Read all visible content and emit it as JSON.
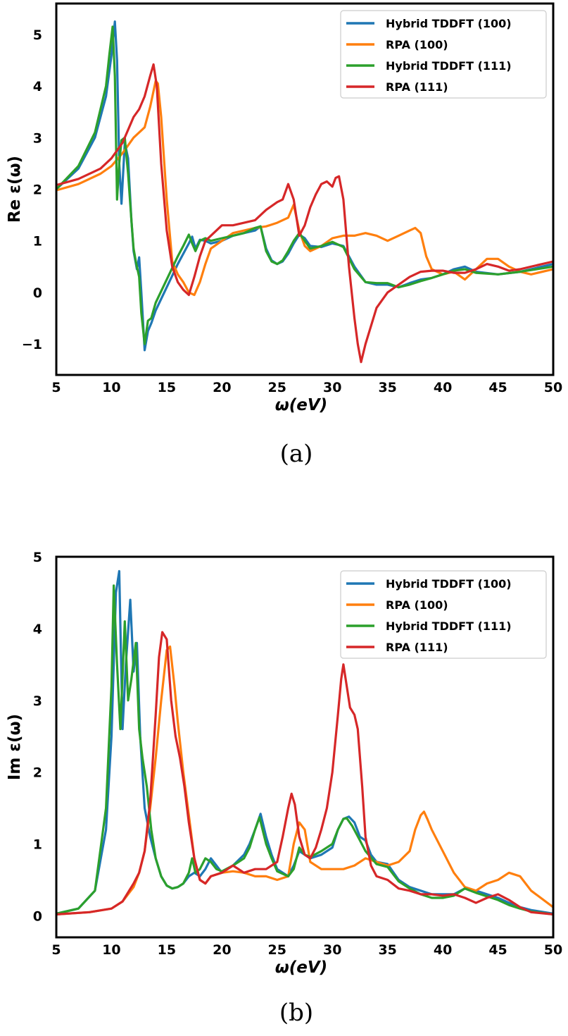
{
  "chart_data": [
    {
      "type": "line",
      "xlabel": "ω(eV)",
      "ylabel": "Re ε(ω)",
      "caption": "(a)",
      "xlim": [
        5,
        50
      ],
      "ylim": [
        -1.6,
        5.6
      ],
      "xticks": [
        5,
        10,
        15,
        20,
        25,
        30,
        35,
        40,
        45,
        50
      ],
      "yticks": [
        -1,
        0,
        1,
        2,
        3,
        4,
        5
      ],
      "legend_position": "top-right",
      "grid": false,
      "series": [
        {
          "name": "Hybrid TDDFT (100)",
          "color": "#1f77b4",
          "x": [
            5,
            7,
            8.5,
            9.5,
            10,
            10.3,
            10.5,
            10.7,
            10.9,
            11.2,
            11.5,
            11.8,
            12,
            12.3,
            12.5,
            12.7,
            13,
            13.3,
            13.6,
            14,
            15,
            16,
            17,
            17.3,
            17.6,
            18,
            18.5,
            19,
            20,
            21,
            22,
            23,
            23.5,
            24,
            24.5,
            25,
            25.5,
            26,
            26.5,
            27,
            27.5,
            28,
            29,
            30,
            31,
            32,
            33,
            34,
            35,
            36,
            37,
            38,
            39,
            40,
            41,
            42,
            43,
            45,
            47,
            50
          ],
          "y": [
            2.0,
            2.4,
            3.0,
            3.8,
            4.6,
            5.25,
            4.5,
            2.5,
            1.72,
            2.9,
            2.6,
            1.4,
            0.8,
            0.45,
            0.68,
            0.0,
            -1.12,
            -0.75,
            -0.6,
            -0.35,
            0.1,
            0.55,
            0.95,
            1.08,
            0.85,
            1.02,
            1.0,
            0.95,
            1.0,
            1.1,
            1.15,
            1.2,
            1.28,
            0.85,
            0.62,
            0.55,
            0.6,
            0.75,
            0.95,
            1.12,
            1.05,
            0.9,
            0.88,
            0.95,
            0.9,
            0.5,
            0.2,
            0.15,
            0.15,
            0.1,
            0.18,
            0.25,
            0.28,
            0.35,
            0.45,
            0.5,
            0.4,
            0.35,
            0.4,
            0.55
          ]
        },
        {
          "name": "RPA (100)",
          "color": "#ff7f0e",
          "x": [
            5,
            7,
            9,
            10,
            11,
            12,
            13,
            13.5,
            14,
            14.2,
            14.5,
            15,
            15.5,
            16,
            16.5,
            17,
            17.5,
            18,
            18.5,
            19,
            20,
            21,
            22,
            23,
            24,
            25,
            26,
            26.5,
            27,
            27.5,
            28,
            29,
            30,
            31,
            32,
            33,
            34,
            35,
            36,
            37,
            37.5,
            38,
            38.5,
            39,
            40,
            41,
            42,
            43,
            44,
            45,
            46,
            47,
            48,
            50
          ],
          "y": [
            1.98,
            2.1,
            2.3,
            2.45,
            2.7,
            3.0,
            3.2,
            3.6,
            4.1,
            4.05,
            3.4,
            1.8,
            0.6,
            0.35,
            0.2,
            0.0,
            -0.05,
            0.2,
            0.55,
            0.85,
            1.0,
            1.15,
            1.2,
            1.25,
            1.28,
            1.35,
            1.45,
            1.7,
            1.2,
            0.9,
            0.8,
            0.9,
            1.05,
            1.1,
            1.1,
            1.15,
            1.1,
            1.0,
            1.1,
            1.2,
            1.25,
            1.15,
            0.7,
            0.45,
            0.35,
            0.4,
            0.25,
            0.45,
            0.65,
            0.65,
            0.5,
            0.4,
            0.35,
            0.45
          ]
        },
        {
          "name": "Hybrid TDDFT (111)",
          "color": "#2ca02c",
          "x": [
            5,
            7,
            8.5,
            9.5,
            9.8,
            10.1,
            10.3,
            10.5,
            10.7,
            10.9,
            11.2,
            11.5,
            11.8,
            12,
            12.2,
            12.5,
            12.7,
            13,
            13.3,
            13.6,
            14,
            15,
            16,
            16.5,
            17,
            17.3,
            17.6,
            18,
            18.5,
            19,
            20,
            21,
            22,
            23,
            23.5,
            24,
            24.5,
            25,
            25.5,
            26,
            26.5,
            27,
            27.5,
            28,
            29,
            30,
            31,
            32,
            33,
            34,
            35,
            36,
            37,
            38,
            39,
            40,
            41,
            42,
            43,
            45,
            47,
            50
          ],
          "y": [
            2.0,
            2.45,
            3.1,
            4.0,
            4.6,
            5.15,
            4.2,
            1.8,
            2.5,
            2.95,
            3.0,
            2.3,
            1.4,
            0.85,
            0.6,
            0.3,
            -0.4,
            -1.0,
            -0.55,
            -0.5,
            -0.2,
            0.25,
            0.7,
            0.9,
            1.12,
            0.95,
            0.8,
            1.0,
            1.05,
            1.0,
            1.05,
            1.1,
            1.15,
            1.25,
            1.28,
            0.8,
            0.6,
            0.55,
            0.62,
            0.8,
            1.0,
            1.15,
            1.0,
            0.85,
            0.9,
            0.98,
            0.88,
            0.45,
            0.2,
            0.18,
            0.18,
            0.1,
            0.15,
            0.22,
            0.28,
            0.35,
            0.42,
            0.45,
            0.38,
            0.35,
            0.4,
            0.5
          ]
        },
        {
          "name": "RPA (111)",
          "color": "#d62728",
          "x": [
            5,
            7,
            9,
            10,
            11,
            12,
            12.5,
            13,
            13.5,
            13.8,
            14.1,
            14.5,
            15,
            15.5,
            16,
            16.5,
            17,
            17.5,
            18,
            18.5,
            19,
            20,
            21,
            22,
            23,
            24,
            25,
            25.5,
            26,
            26.5,
            27,
            27.5,
            28,
            28.5,
            29,
            29.5,
            30,
            30.3,
            30.6,
            31,
            31.5,
            32,
            32.3,
            32.6,
            33,
            34,
            35,
            36,
            37,
            38,
            39,
            40,
            41,
            42,
            43,
            44,
            45,
            46,
            47,
            48,
            50
          ],
          "y": [
            2.08,
            2.2,
            2.4,
            2.6,
            2.9,
            3.4,
            3.55,
            3.8,
            4.2,
            4.42,
            4.0,
            2.5,
            1.2,
            0.5,
            0.2,
            0.05,
            -0.05,
            0.3,
            0.7,
            1.0,
            1.1,
            1.3,
            1.3,
            1.35,
            1.4,
            1.6,
            1.75,
            1.8,
            2.1,
            1.8,
            1.1,
            1.3,
            1.65,
            1.9,
            2.1,
            2.15,
            2.05,
            2.22,
            2.25,
            1.8,
            0.5,
            -0.5,
            -1.0,
            -1.35,
            -1.0,
            -0.3,
            0.0,
            0.15,
            0.3,
            0.4,
            0.42,
            0.42,
            0.38,
            0.38,
            0.45,
            0.55,
            0.5,
            0.42,
            0.45,
            0.5,
            0.6
          ]
        }
      ]
    },
    {
      "type": "line",
      "xlabel": "ω(eV)",
      "ylabel": "Im ε(ω)",
      "caption": "(b)",
      "xlim": [
        5,
        50
      ],
      "ylim": [
        -0.3,
        5.0
      ],
      "xticks": [
        5,
        10,
        15,
        20,
        25,
        30,
        35,
        40,
        45,
        50
      ],
      "yticks": [
        0,
        1,
        2,
        3,
        4,
        5
      ],
      "legend_position": "top-right",
      "grid": false,
      "series": [
        {
          "name": "Hybrid TDDFT (100)",
          "color": "#1f77b4",
          "x": [
            5,
            7,
            8.5,
            9.5,
            10,
            10.4,
            10.7,
            11,
            11.3,
            11.7,
            12,
            12.3,
            12.6,
            13,
            13.5,
            14,
            14.5,
            15,
            15.5,
            16,
            16.5,
            17,
            17.5,
            18,
            18.5,
            19,
            19.5,
            20,
            21,
            22,
            22.5,
            23,
            23.5,
            24,
            24.5,
            25,
            26,
            26.5,
            27,
            27.5,
            28,
            29,
            30,
            30.5,
            31,
            31.5,
            32,
            32.5,
            33,
            33.5,
            34,
            35,
            36,
            37,
            38,
            39,
            40,
            41,
            42,
            43,
            44,
            45,
            46,
            47,
            48,
            50
          ],
          "y": [
            0.03,
            0.1,
            0.35,
            1.2,
            2.5,
            4.5,
            4.8,
            2.6,
            3.5,
            4.4,
            3.4,
            3.8,
            2.5,
            1.5,
            1.1,
            0.8,
            0.55,
            0.42,
            0.38,
            0.4,
            0.45,
            0.55,
            0.6,
            0.55,
            0.65,
            0.8,
            0.7,
            0.6,
            0.7,
            0.85,
            1.0,
            1.2,
            1.42,
            1.1,
            0.85,
            0.65,
            0.55,
            0.7,
            0.9,
            0.85,
            0.8,
            0.85,
            0.95,
            1.2,
            1.35,
            1.38,
            1.3,
            1.1,
            1.05,
            0.85,
            0.75,
            0.72,
            0.5,
            0.4,
            0.35,
            0.3,
            0.3,
            0.3,
            0.38,
            0.35,
            0.3,
            0.25,
            0.18,
            0.12,
            0.08,
            0.03
          ]
        },
        {
          "name": "RPA (100)",
          "color": "#ff7f0e",
          "x": [
            5,
            8,
            10,
            11,
            12,
            12.5,
            13,
            13.5,
            14,
            14.5,
            15,
            15.3,
            15.7,
            16,
            16.5,
            17,
            17.5,
            18,
            18.5,
            19,
            20,
            21,
            22,
            23,
            24,
            25,
            26,
            26.5,
            27,
            27.5,
            28,
            29,
            30,
            31,
            32,
            33,
            34,
            35,
            36,
            37,
            37.5,
            38,
            38.3,
            38.6,
            39,
            40,
            41,
            42,
            43,
            44,
            45,
            46,
            47,
            48,
            50
          ],
          "y": [
            0.02,
            0.05,
            0.1,
            0.2,
            0.4,
            0.6,
            0.9,
            1.5,
            2.2,
            3.0,
            3.7,
            3.75,
            3.2,
            2.7,
            2.0,
            1.4,
            0.8,
            0.5,
            0.45,
            0.55,
            0.6,
            0.62,
            0.6,
            0.55,
            0.55,
            0.5,
            0.55,
            1.0,
            1.3,
            1.2,
            0.75,
            0.65,
            0.65,
            0.65,
            0.7,
            0.8,
            0.75,
            0.7,
            0.75,
            0.9,
            1.2,
            1.4,
            1.45,
            1.35,
            1.2,
            0.9,
            0.6,
            0.4,
            0.35,
            0.45,
            0.5,
            0.6,
            0.55,
            0.35,
            0.12
          ]
        },
        {
          "name": "Hybrid TDDFT (111)",
          "color": "#2ca02c",
          "x": [
            5,
            7,
            8.5,
            9.5,
            10,
            10.2,
            10.5,
            10.8,
            11.2,
            11.5,
            11.8,
            12.2,
            12.5,
            12.8,
            13.2,
            13.6,
            14,
            14.5,
            15,
            15.5,
            16,
            16.5,
            17,
            17.3,
            17.6,
            18,
            18.5,
            19,
            19.5,
            20,
            21,
            22,
            22.5,
            23,
            23.4,
            24,
            24.5,
            25,
            26,
            26.5,
            27,
            27.5,
            28,
            29,
            30,
            30.5,
            31,
            31.3,
            31.8,
            32.5,
            33,
            34,
            35,
            36,
            37,
            38,
            39,
            40,
            41,
            42,
            43,
            44,
            45,
            46,
            47,
            48,
            50
          ],
          "y": [
            0.03,
            0.1,
            0.35,
            1.5,
            3.2,
            4.6,
            3.5,
            2.6,
            4.1,
            3.0,
            3.3,
            3.8,
            2.6,
            2.2,
            1.8,
            1.2,
            0.8,
            0.55,
            0.42,
            0.38,
            0.4,
            0.45,
            0.6,
            0.8,
            0.6,
            0.65,
            0.8,
            0.75,
            0.65,
            0.62,
            0.7,
            0.8,
            0.95,
            1.2,
            1.37,
            1.0,
            0.8,
            0.62,
            0.55,
            0.65,
            0.95,
            0.85,
            0.82,
            0.9,
            1.0,
            1.2,
            1.35,
            1.36,
            1.25,
            1.05,
            0.9,
            0.72,
            0.68,
            0.48,
            0.38,
            0.3,
            0.25,
            0.25,
            0.28,
            0.38,
            0.32,
            0.27,
            0.22,
            0.15,
            0.1,
            0.06,
            0.02
          ]
        },
        {
          "name": "RPA (111)",
          "color": "#d62728",
          "x": [
            5,
            8,
            10,
            11,
            12,
            12.5,
            13,
            13.5,
            14,
            14.3,
            14.6,
            15,
            15.4,
            15.8,
            16.2,
            16.6,
            17,
            17.5,
            18,
            18.5,
            19,
            20,
            21,
            22,
            23,
            24,
            25,
            25.5,
            26,
            26.3,
            26.6,
            27,
            27.5,
            28,
            28.5,
            29,
            29.5,
            30,
            30.5,
            30.8,
            31,
            31.3,
            31.6,
            32,
            32.3,
            32.7,
            33,
            33.5,
            34,
            35,
            36,
            37,
            38,
            39,
            40,
            41,
            42,
            43,
            44,
            45,
            46,
            47,
            48,
            50
          ],
          "y": [
            0.02,
            0.05,
            0.1,
            0.2,
            0.45,
            0.6,
            0.9,
            1.6,
            2.8,
            3.6,
            3.95,
            3.85,
            3.0,
            2.5,
            2.2,
            1.8,
            1.3,
            0.8,
            0.5,
            0.45,
            0.55,
            0.6,
            0.7,
            0.6,
            0.65,
            0.65,
            0.75,
            1.1,
            1.5,
            1.7,
            1.55,
            1.1,
            0.85,
            0.8,
            0.95,
            1.2,
            1.5,
            2.0,
            2.8,
            3.3,
            3.5,
            3.2,
            2.9,
            2.8,
            2.6,
            1.8,
            1.1,
            0.7,
            0.55,
            0.5,
            0.38,
            0.35,
            0.3,
            0.3,
            0.28,
            0.3,
            0.25,
            0.18,
            0.25,
            0.3,
            0.22,
            0.12,
            0.05,
            0.02
          ]
        }
      ]
    }
  ]
}
